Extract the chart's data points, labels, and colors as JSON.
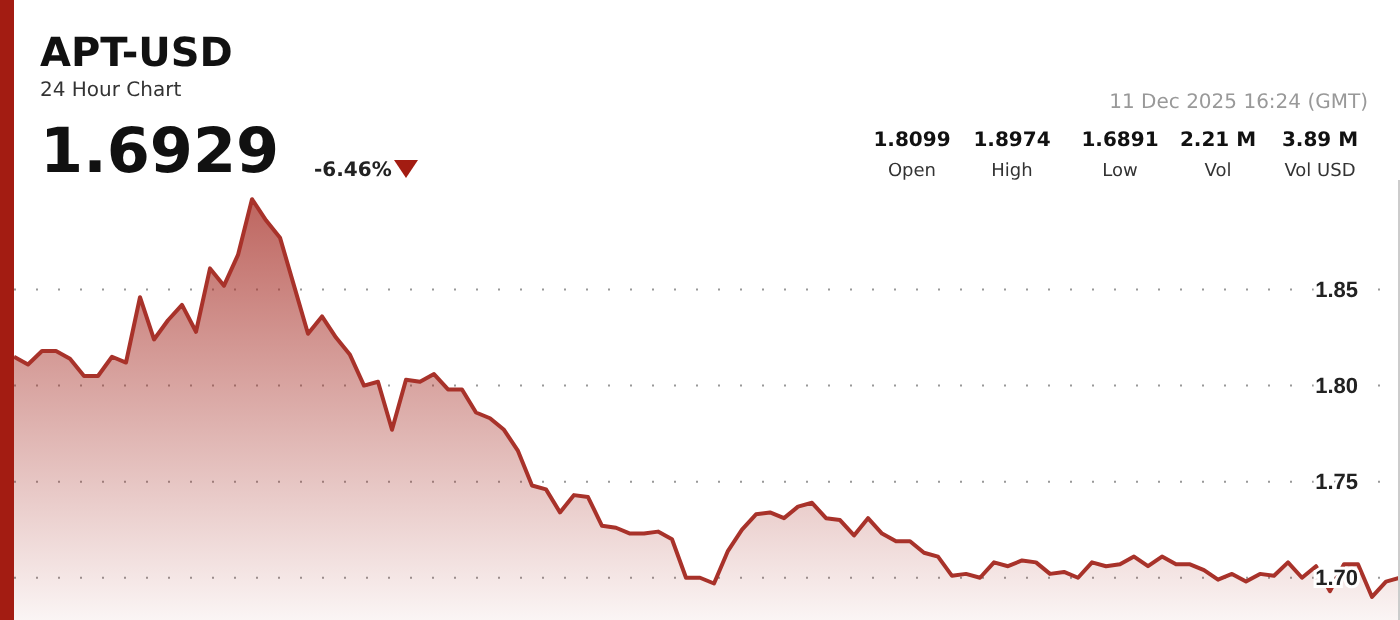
{
  "chart_data": {
    "type": "area",
    "title": "APT-USD",
    "subtitle": "24 Hour Chart",
    "annotations": [
      "1.6929",
      "-6.46%",
      "11 Dec 2025 16:24 (GMT)",
      "1.8099",
      "Open",
      "1.8974",
      "High",
      "1.6891",
      "Low",
      "2.21 M",
      "Vol",
      "3.89 M",
      "Vol USD"
    ],
    "categories": [
      null,
      null,
      null,
      null,
      null,
      null,
      null,
      null,
      null,
      null,
      null,
      null,
      null,
      null,
      null,
      null,
      null,
      null,
      null,
      null,
      null,
      null,
      null,
      null,
      null,
      null,
      null,
      null,
      null,
      null,
      null,
      null,
      null,
      null,
      null,
      null,
      null,
      null,
      null,
      null,
      null,
      null,
      null,
      null,
      null,
      null,
      null,
      null,
      null,
      null,
      null,
      null,
      null,
      null,
      null,
      null,
      null,
      null,
      null,
      null,
      null,
      null,
      null,
      null,
      null,
      null,
      null,
      null,
      null,
      null,
      null,
      null,
      null,
      null,
      null,
      null,
      null,
      null,
      null,
      null,
      null,
      null,
      null,
      null,
      null,
      null,
      null,
      null,
      null,
      null,
      null,
      null,
      null,
      null,
      null,
      null,
      null,
      null,
      null,
      null
    ],
    "series": [
      {
        "color": "#a8322a",
        "values": [
          1.815,
          1.811,
          1.818,
          1.818,
          1.814,
          1.805,
          1.805,
          1.815,
          1.812,
          1.846,
          1.824,
          1.834,
          1.842,
          1.828,
          1.861,
          1.852,
          1.868,
          1.897,
          1.886,
          1.877,
          1.852,
          1.827,
          1.836,
          1.825,
          1.816,
          1.8,
          1.802,
          1.777,
          1.803,
          1.802,
          1.806,
          1.798,
          1.798,
          1.786,
          1.783,
          1.777,
          1.766,
          1.748,
          1.746,
          1.734,
          1.743,
          1.742,
          1.727,
          1.726,
          1.723,
          1.723,
          1.724,
          1.72,
          1.7,
          1.7,
          1.697,
          1.714,
          1.725,
          1.733,
          1.734,
          1.731,
          1.737,
          1.739,
          1.731,
          1.73,
          1.722,
          1.731,
          1.723,
          1.719,
          1.719,
          1.713,
          1.711,
          1.701,
          1.702,
          1.7,
          1.708,
          1.706,
          1.709,
          1.708,
          1.702,
          1.703,
          1.7,
          1.708,
          1.706,
          1.707,
          1.711,
          1.706,
          1.711,
          1.707,
          1.707,
          1.704,
          1.699,
          1.702,
          1.698,
          1.702,
          1.701,
          1.708,
          1.7,
          1.706,
          1.693,
          1.707,
          1.707,
          1.69,
          1.698,
          1.7
        ]
      }
    ],
    "ylim": [
      1.678,
      1.907
    ],
    "yticks": [
      {
        "value": 1.7,
        "label": "1.70"
      },
      1.75,
      {
        "value": 1.8,
        "label": "1.80"
      },
      1.85
    ],
    "grid": "y"
  }
}
